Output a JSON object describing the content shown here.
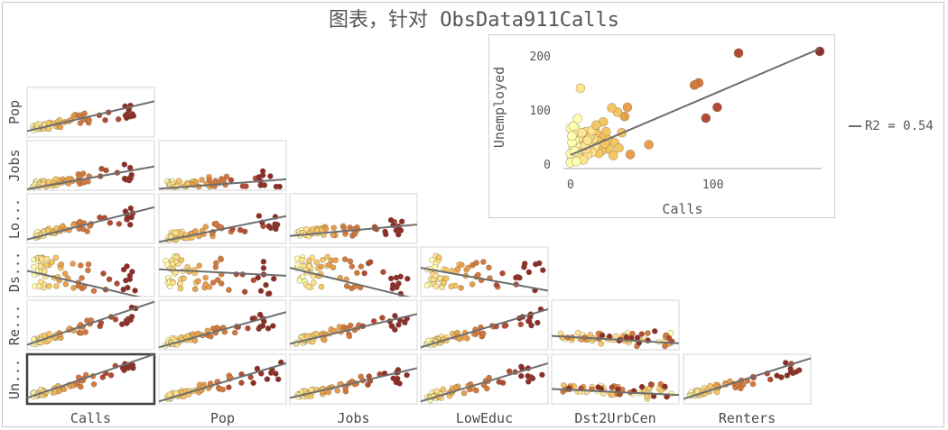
{
  "title": "图表，针对 ObsData911Calls",
  "variables": [
    "Calls",
    "Pop",
    "Jobs",
    "LowEduc",
    "Dst2UrbCen",
    "Renters",
    "Unemployed"
  ],
  "row_labels": [
    "Pop",
    "Jobs",
    "Lo...",
    "Ds...",
    "Re...",
    "Un..."
  ],
  "col_labels": [
    "Calls",
    "Pop",
    "Jobs",
    "LowEduc",
    "Dst2UrbCen",
    "Renters"
  ],
  "selected_cell": {
    "row": "Unemployed",
    "col": "Calls"
  },
  "legend": {
    "r2_text": "R2 = 0.54"
  },
  "colors": {
    "ramp": [
      "#ffffb2",
      "#fde58f",
      "#f5c764",
      "#e8a04c",
      "#d3793e",
      "#b14b33",
      "#8c2d2a"
    ],
    "line": "#6e6e6e",
    "selected_border": "#404040"
  },
  "chart_data": {
    "type": "scatter",
    "detail": {
      "x_var": "Calls",
      "y_var": "Unemployed",
      "xlabel": "Calls",
      "ylabel": "Unemployed",
      "xlim": [
        -5,
        175
      ],
      "ylim": [
        -8,
        218
      ],
      "xticks": [
        0,
        100
      ],
      "yticks": [
        0,
        100,
        200
      ],
      "fit": {
        "slope": 1.12,
        "intercept": 17,
        "r2": 0.54
      },
      "points": [
        [
          175,
          208
        ],
        [
          118,
          205
        ],
        [
          90,
          150
        ],
        [
          87,
          146
        ],
        [
          103,
          105
        ],
        [
          95,
          85
        ],
        [
          55,
          36
        ],
        [
          42,
          18
        ],
        [
          40,
          105
        ],
        [
          38,
          88
        ],
        [
          36,
          58
        ],
        [
          33,
          96
        ],
        [
          31,
          40
        ],
        [
          29,
          104
        ],
        [
          27,
          28
        ],
        [
          26,
          46
        ],
        [
          25,
          60
        ],
        [
          23,
          78
        ],
        [
          22,
          25
        ],
        [
          21,
          50
        ],
        [
          20,
          20
        ],
        [
          19,
          44
        ],
        [
          18,
          58
        ],
        [
          17,
          31
        ],
        [
          16,
          47
        ],
        [
          15,
          22
        ],
        [
          14,
          52
        ],
        [
          13,
          35
        ],
        [
          12,
          18
        ],
        [
          11,
          60
        ],
        [
          10,
          42
        ],
        [
          9,
          54
        ],
        [
          8,
          30
        ],
        [
          7,
          140
        ],
        [
          7,
          26
        ],
        [
          6,
          48
        ],
        [
          5,
          84
        ],
        [
          5,
          20
        ],
        [
          4,
          35
        ],
        [
          4,
          65
        ],
        [
          3,
          44
        ],
        [
          3,
          14
        ],
        [
          2,
          55
        ],
        [
          2,
          30
        ],
        [
          1,
          10
        ],
        [
          1,
          40
        ],
        [
          0,
          66
        ],
        [
          0,
          20
        ],
        [
          0,
          3
        ],
        [
          6,
          12
        ],
        [
          9,
          8
        ],
        [
          11,
          28
        ],
        [
          13,
          48
        ],
        [
          15,
          62
        ],
        [
          4,
          5
        ],
        [
          2,
          70
        ],
        [
          8,
          58
        ],
        [
          10,
          34
        ],
        [
          18,
          72
        ],
        [
          24,
          38
        ],
        [
          30,
          16
        ],
        [
          34,
          30
        ],
        [
          3,
          24
        ],
        [
          1,
          52
        ],
        [
          12,
          44
        ]
      ]
    },
    "matrix": {
      "rows": [
        "Pop",
        "Jobs",
        "LowEduc",
        "Dst2UrbCen",
        "Renters",
        "Unemployed"
      ],
      "cols": [
        "Calls",
        "Pop",
        "Jobs",
        "LowEduc",
        "Dst2UrbCen",
        "Renters"
      ],
      "n_points": 65,
      "fit_lines": {
        "Pop|Calls": [
          0.0,
          0.12,
          1.0,
          0.72
        ],
        "Jobs|Calls": [
          0.0,
          0.02,
          1.0,
          0.48
        ],
        "Jobs|Pop": [
          0.0,
          0.03,
          1.0,
          0.22
        ],
        "LowEduc|Calls": [
          0.0,
          0.08,
          1.0,
          0.73
        ],
        "LowEduc|Pop": [
          0.0,
          0.03,
          1.0,
          0.55
        ],
        "LowEduc|Jobs": [
          0.0,
          0.15,
          1.0,
          0.38
        ],
        "Dst2UrbCen|Calls": [
          0.0,
          0.52,
          1.0,
          -0.08
        ],
        "Dst2UrbCen|Pop": [
          0.0,
          0.55,
          1.0,
          0.42
        ],
        "Dst2UrbCen|Jobs": [
          0.0,
          0.58,
          1.0,
          -0.05
        ],
        "Dst2UrbCen|LowEduc": [
          0.0,
          0.58,
          1.0,
          0.12
        ],
        "Renters|Calls": [
          0.0,
          0.1,
          1.0,
          0.97
        ],
        "Renters|Pop": [
          0.0,
          0.05,
          1.0,
          0.76
        ],
        "Renters|Jobs": [
          0.0,
          0.12,
          1.0,
          0.72
        ],
        "Renters|LowEduc": [
          0.0,
          0.05,
          1.0,
          0.82
        ],
        "Renters|Dst2UrbCen": [
          0.0,
          0.28,
          1.0,
          0.13
        ],
        "Unemployed|Calls": [
          0.0,
          0.12,
          1.0,
          1.0
        ],
        "Unemployed|Pop": [
          0.0,
          0.05,
          1.0,
          0.82
        ],
        "Unemployed|Jobs": [
          0.0,
          0.12,
          1.0,
          0.72
        ],
        "Unemployed|LowEduc": [
          0.0,
          0.05,
          1.0,
          0.82
        ],
        "Unemployed|Dst2UrbCen": [
          0.0,
          0.3,
          1.0,
          0.18
        ],
        "Unemployed|Renters": [
          0.0,
          0.1,
          1.0,
          0.92
        ]
      }
    }
  }
}
